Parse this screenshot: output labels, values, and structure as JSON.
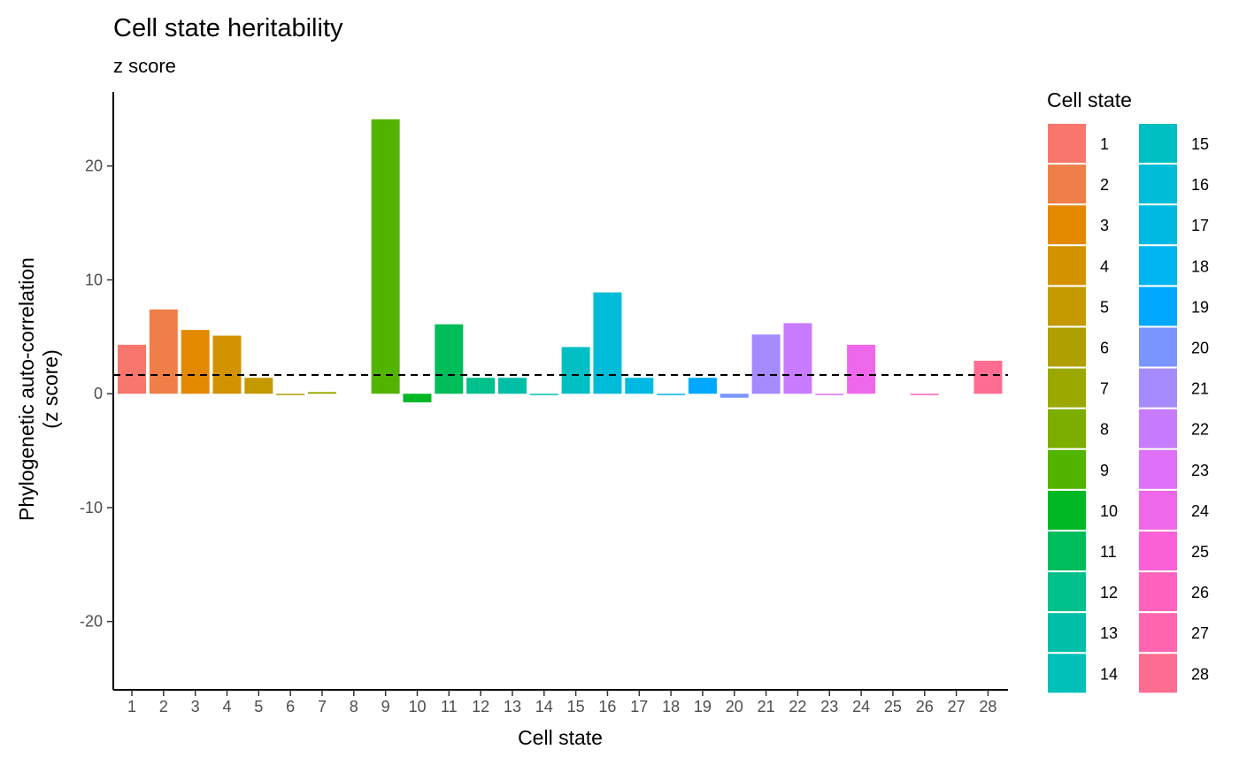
{
  "chart_data": {
    "type": "bar",
    "title": "Cell state heritability",
    "subtitle": "z score",
    "xlabel": "Cell state",
    "ylabel_lines": [
      "Phylogenetic auto-correlation",
      "(z score)"
    ],
    "ylim": [
      -26,
      26.5
    ],
    "yticks": [
      {
        "value": -20,
        "label": "-20"
      },
      {
        "value": -10,
        "label": "-10"
      },
      {
        "value": 0,
        "label": "0"
      },
      {
        "value": 10,
        "label": "10"
      },
      {
        "value": 20,
        "label": "20"
      }
    ],
    "reference_line": {
      "value": 1.65,
      "style": "dashed",
      "color": "#000000"
    },
    "categories": [
      "1",
      "2",
      "3",
      "4",
      "5",
      "6",
      "7",
      "8",
      "9",
      "10",
      "11",
      "12",
      "13",
      "14",
      "15",
      "16",
      "17",
      "18",
      "19",
      "20",
      "21",
      "22",
      "23",
      "24",
      "25",
      "26",
      "27",
      "28"
    ],
    "values": [
      4.3,
      7.4,
      5.6,
      5.1,
      1.4,
      -0.1,
      0.15,
      0,
      24.1,
      -0.75,
      6.1,
      1.4,
      1.4,
      -0.1,
      4.1,
      8.9,
      1.4,
      -0.1,
      1.4,
      -0.35,
      5.2,
      6.2,
      -0.05,
      4.3,
      0,
      -0.1,
      0,
      2.9
    ],
    "colors": [
      "#F8766D",
      "#EF7F49",
      "#E38900",
      "#D39200",
      "#C49A00",
      "#B09F00",
      "#9AA800",
      "#7CAE00",
      "#53B400",
      "#00B823",
      "#00BD5C",
      "#00C08B",
      "#00BFA6",
      "#00C0B9",
      "#00BFC4",
      "#00BCD8",
      "#00B9E3",
      "#00B4F0",
      "#00A9FF",
      "#7A95FF",
      "#A58AFF",
      "#C77CFF",
      "#DF70F8",
      "#EF67EB",
      "#FB61D7",
      "#FF62BC",
      "#FF65AE",
      "#FF6C91"
    ],
    "grid": false,
    "legend": {
      "title": "Cell state",
      "placement": "right",
      "columns": 2
    }
  }
}
